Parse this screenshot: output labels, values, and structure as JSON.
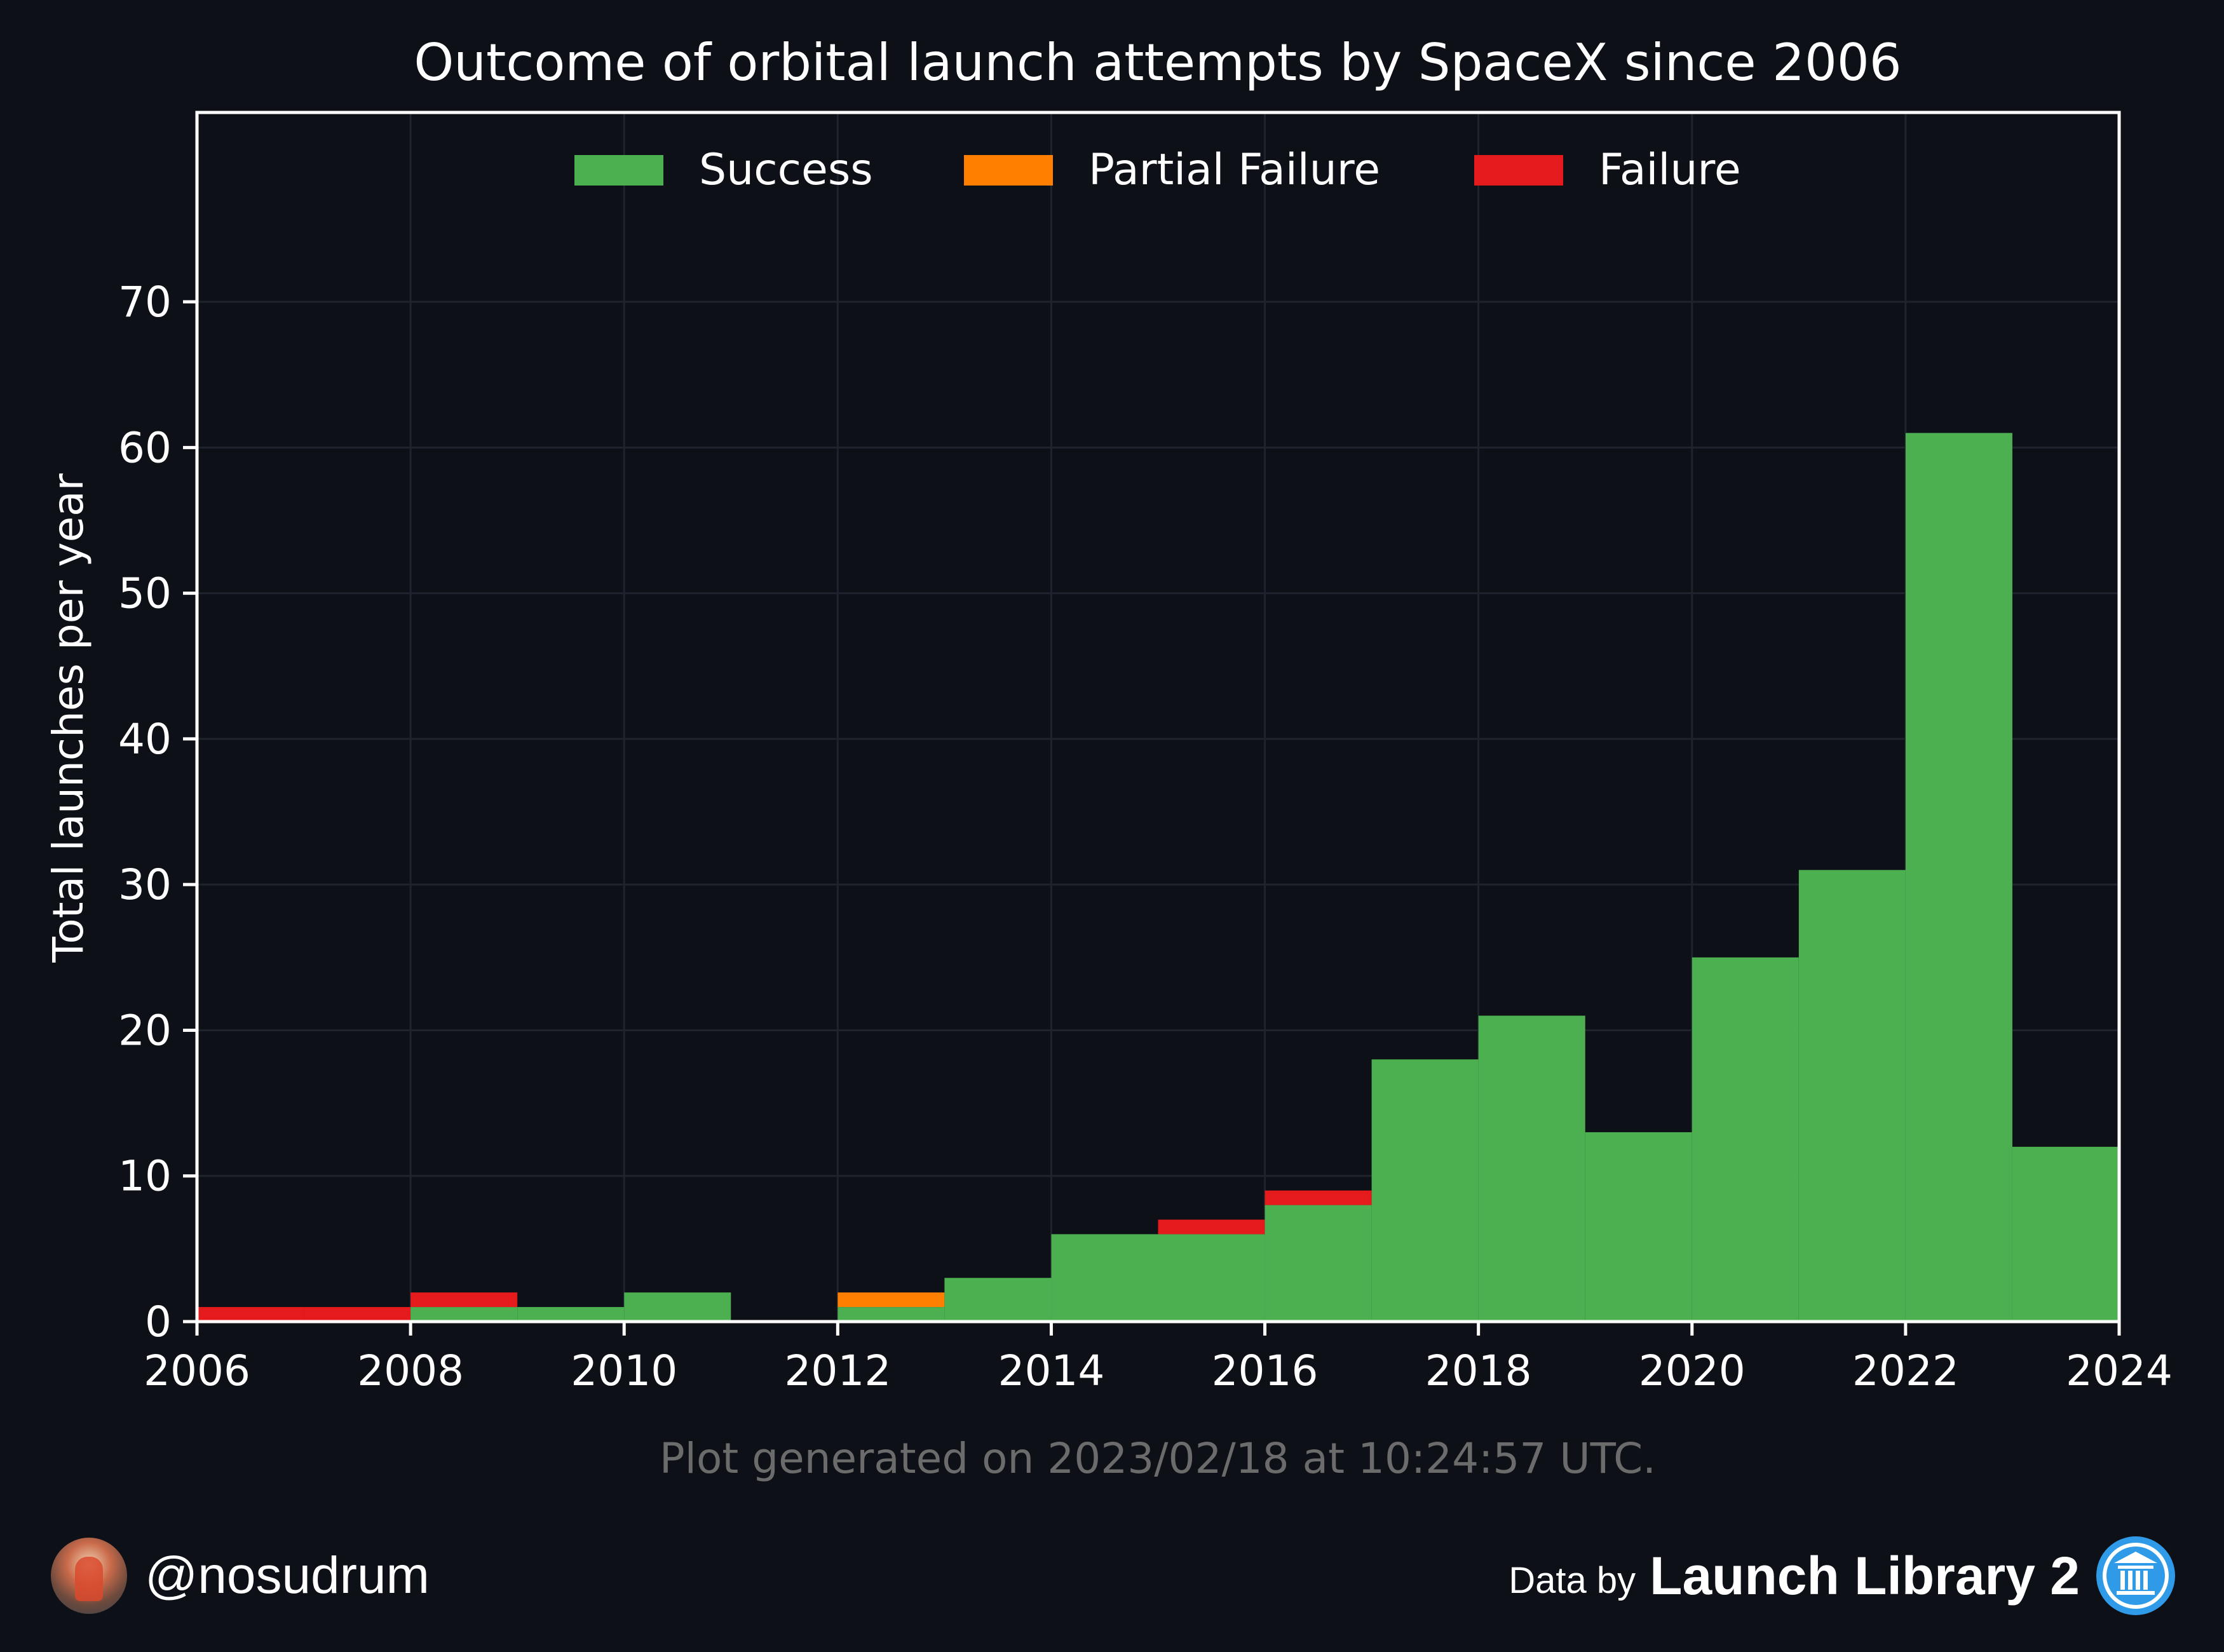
{
  "colors": {
    "background": "#0d1017",
    "success": "#4caf50",
    "partial_failure": "#ff7f00",
    "failure": "#e41a1c",
    "text": "#ffffff",
    "muted_text": "#6b6b6b",
    "grid": "#1e232d"
  },
  "chart_data": {
    "type": "bar",
    "stacked": true,
    "title": "Outcome of orbital launch attempts by SpaceX since 2006",
    "xlabel": "",
    "ylabel": "Total launches per year",
    "xlim": [
      2006,
      2024
    ],
    "ylim": [
      0,
      83
    ],
    "x_ticks": [
      "2006",
      "2008",
      "2010",
      "2012",
      "2014",
      "2016",
      "2018",
      "2020",
      "2022",
      "2024"
    ],
    "y_ticks": [
      "0",
      "10",
      "20",
      "30",
      "40",
      "50",
      "60",
      "70"
    ],
    "grid": true,
    "legend_position": "top-center",
    "categories": [
      2006,
      2007,
      2008,
      2009,
      2010,
      2011,
      2012,
      2013,
      2014,
      2015,
      2016,
      2017,
      2018,
      2019,
      2020,
      2021,
      2022,
      2023
    ],
    "series": [
      {
        "name": "Success",
        "color": "#4caf50",
        "values": [
          0,
          0,
          1,
          1,
          2,
          0,
          1,
          3,
          6,
          6,
          8,
          18,
          21,
          13,
          25,
          31,
          61,
          12
        ]
      },
      {
        "name": "Partial Failure",
        "color": "#ff7f00",
        "values": [
          0,
          0,
          0,
          0,
          0,
          0,
          1,
          0,
          0,
          0,
          0,
          0,
          0,
          0,
          0,
          0,
          0,
          0
        ]
      },
      {
        "name": "Failure",
        "color": "#e41a1c",
        "values": [
          1,
          1,
          1,
          0,
          0,
          0,
          0,
          0,
          0,
          1,
          1,
          0,
          0,
          0,
          0,
          0,
          0,
          0
        ]
      }
    ],
    "annotation": "Plot generated on 2023/02/18 at 10:24:57 UTC."
  },
  "footer": {
    "handle": "@nosudrum",
    "data_by": "Data by",
    "source": "Launch Library 2"
  }
}
